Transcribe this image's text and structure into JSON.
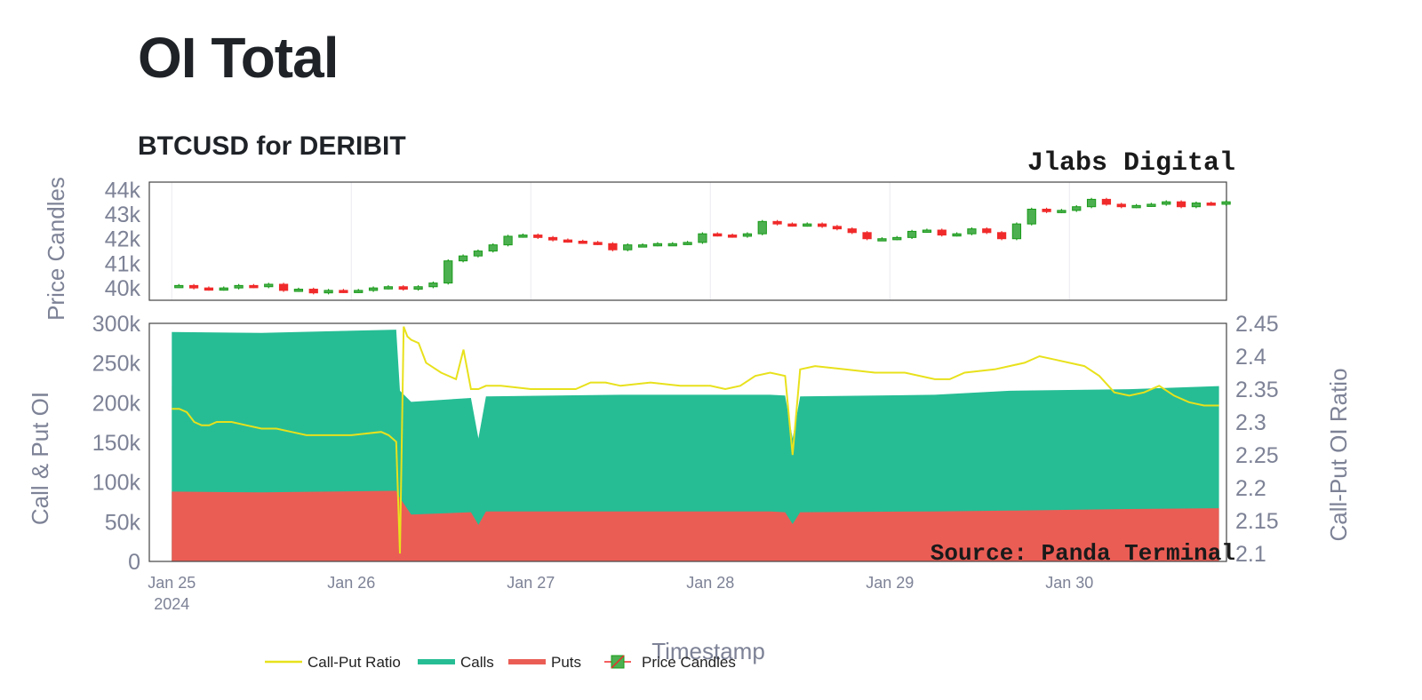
{
  "header": {
    "title": "OI Total",
    "subtitle": "BTCUSD for DERIBIT"
  },
  "watermarks": {
    "top": "Jlabs Digital",
    "bottom": "Source: Panda Terminal"
  },
  "colors": {
    "calls": "#26bd94",
    "puts": "#ea5d55",
    "ratio": "#e8e11c",
    "up": "#1a9c1a",
    "down": "#f02a2a",
    "axis_text": "#7d8296"
  },
  "chart_data": [
    {
      "type": "candlestick",
      "title": "",
      "ylabel": "Price Candles",
      "ylim": [
        39500,
        44300
      ],
      "yticks": [
        40000,
        41000,
        42000,
        43000,
        44000
      ],
      "ytick_labels": [
        "40k",
        "41k",
        "42k",
        "43k",
        "44k"
      ],
      "series": [
        {
          "name": "Price Candles",
          "x": [
            "2024-01-25T00:00",
            "2024-01-25T02:00",
            "2024-01-25T04:00",
            "2024-01-25T06:00",
            "2024-01-25T08:00",
            "2024-01-25T10:00",
            "2024-01-25T12:00",
            "2024-01-25T14:00",
            "2024-01-25T16:00",
            "2024-01-25T18:00",
            "2024-01-25T20:00",
            "2024-01-25T22:00",
            "2024-01-26T00:00",
            "2024-01-26T02:00",
            "2024-01-26T04:00",
            "2024-01-26T06:00",
            "2024-01-26T08:00",
            "2024-01-26T10:00",
            "2024-01-26T12:00",
            "2024-01-26T14:00",
            "2024-01-26T16:00",
            "2024-01-26T18:00",
            "2024-01-26T20:00",
            "2024-01-26T22:00",
            "2024-01-27T00:00",
            "2024-01-27T02:00",
            "2024-01-27T04:00",
            "2024-01-27T06:00",
            "2024-01-27T08:00",
            "2024-01-27T10:00",
            "2024-01-27T12:00",
            "2024-01-27T14:00",
            "2024-01-27T16:00",
            "2024-01-27T18:00",
            "2024-01-27T20:00",
            "2024-01-27T22:00",
            "2024-01-28T00:00",
            "2024-01-28T02:00",
            "2024-01-28T04:00",
            "2024-01-28T06:00",
            "2024-01-28T08:00",
            "2024-01-28T10:00",
            "2024-01-28T12:00",
            "2024-01-28T14:00",
            "2024-01-28T16:00",
            "2024-01-28T18:00",
            "2024-01-28T20:00",
            "2024-01-28T22:00",
            "2024-01-29T00:00",
            "2024-01-29T02:00",
            "2024-01-29T04:00",
            "2024-01-29T06:00",
            "2024-01-29T08:00",
            "2024-01-29T10:00",
            "2024-01-29T12:00",
            "2024-01-29T14:00",
            "2024-01-29T16:00",
            "2024-01-29T18:00",
            "2024-01-29T20:00",
            "2024-01-29T22:00",
            "2024-01-30T00:00",
            "2024-01-30T02:00",
            "2024-01-30T04:00",
            "2024-01-30T06:00",
            "2024-01-30T08:00",
            "2024-01-30T10:00",
            "2024-01-30T12:00",
            "2024-01-30T14:00",
            "2024-01-30T16:00",
            "2024-01-30T18:00",
            "2024-01-30T20:00"
          ],
          "close": [
            40100,
            40000,
            39950,
            40000,
            40100,
            40050,
            40150,
            39900,
            39950,
            39800,
            39900,
            39850,
            39900,
            40000,
            40050,
            39950,
            40050,
            40200,
            41100,
            41300,
            41500,
            41750,
            42100,
            42150,
            42050,
            41950,
            41900,
            41850,
            41800,
            41550,
            41750,
            41750,
            41800,
            41800,
            41850,
            42200,
            42150,
            42100,
            42200,
            42700,
            42600,
            42550,
            42600,
            42500,
            42400,
            42250,
            42000,
            42000,
            42050,
            42300,
            42350,
            42150,
            42200,
            42400,
            42250,
            42000,
            42600,
            43200,
            43100,
            43150,
            43300,
            43600,
            43400,
            43300,
            43350,
            43400,
            43500,
            43300,
            43450,
            43400,
            43500
          ]
        }
      ]
    },
    {
      "type": "area",
      "title": "",
      "xlabel": "Timestamp",
      "ylabel": "Call & Put OI",
      "y2label": "Call-Put OI Ratio",
      "ylim": [
        0,
        300000
      ],
      "yticks": [
        0,
        50000,
        100000,
        150000,
        200000,
        250000,
        300000
      ],
      "ytick_labels": [
        "0",
        "50k",
        "100k",
        "150k",
        "200k",
        "250k",
        "300k"
      ],
      "y2lim": [
        2.088,
        2.45
      ],
      "y2ticks": [
        2.1,
        2.15,
        2.2,
        2.25,
        2.3,
        2.35,
        2.4,
        2.45
      ],
      "y2tick_labels": [
        "2.1",
        "2.15",
        "2.2",
        "2.25",
        "2.3",
        "2.35",
        "2.4",
        "2.45"
      ],
      "xticks": [
        "Jan 25",
        "Jan 26",
        "Jan 27",
        "Jan 28",
        "Jan 29",
        "Jan 30"
      ],
      "xtick_year": "2024",
      "x_days": [
        "2024-01-25",
        "2024-01-26",
        "2024-01-27",
        "2024-01-28",
        "2024-01-29",
        "2024-01-30",
        "2024-01-30T20:00"
      ],
      "series": [
        {
          "name": "Calls",
          "stack": "total",
          "x": [
            "2024-01-25T00:00",
            "2024-01-25T12:00",
            "2024-01-26T06:00",
            "2024-01-26T06:30",
            "2024-01-26T08:00",
            "2024-01-26T16:00",
            "2024-01-26T17:00",
            "2024-01-26T18:00",
            "2024-01-27T12:00",
            "2024-01-28T08:00",
            "2024-01-28T10:00",
            "2024-01-28T11:00",
            "2024-01-28T12:00",
            "2024-01-29T06:00",
            "2024-01-29T16:00",
            "2024-01-30T08:00",
            "2024-01-30T20:00"
          ],
          "values": [
            289000,
            288000,
            292000,
            215000,
            201000,
            206000,
            155000,
            208000,
            210000,
            210000,
            209000,
            155000,
            208000,
            210000,
            215000,
            217000,
            221000
          ]
        },
        {
          "name": "Puts",
          "x": [
            "2024-01-25T00:00",
            "2024-01-25T12:00",
            "2024-01-26T06:00",
            "2024-01-26T06:30",
            "2024-01-26T08:00",
            "2024-01-26T16:00",
            "2024-01-26T17:00",
            "2024-01-26T18:00",
            "2024-01-27T12:00",
            "2024-01-28T08:00",
            "2024-01-28T10:00",
            "2024-01-28T11:00",
            "2024-01-28T12:00",
            "2024-01-29T06:00",
            "2024-01-29T16:00",
            "2024-01-30T08:00",
            "2024-01-30T20:00"
          ],
          "values": [
            88000,
            87000,
            89000,
            80000,
            59000,
            62000,
            46000,
            63000,
            63000,
            63000,
            62000,
            47000,
            62000,
            63000,
            64000,
            66000,
            67000
          ]
        },
        {
          "name": "Call-Put Ratio",
          "axis": "y2",
          "x": [
            "2024-01-25T00:00",
            "2024-01-25T01:00",
            "2024-01-25T02:00",
            "2024-01-25T03:00",
            "2024-01-25T04:00",
            "2024-01-25T05:00",
            "2024-01-25T06:00",
            "2024-01-25T08:00",
            "2024-01-25T10:00",
            "2024-01-25T12:00",
            "2024-01-25T14:00",
            "2024-01-25T16:00",
            "2024-01-25T18:00",
            "2024-01-25T20:00",
            "2024-01-26T00:00",
            "2024-01-26T04:00",
            "2024-01-26T05:00",
            "2024-01-26T06:00",
            "2024-01-26T06:30",
            "2024-01-26T07:00",
            "2024-01-26T07:30",
            "2024-01-26T08:00",
            "2024-01-26T09:00",
            "2024-01-26T10:00",
            "2024-01-26T12:00",
            "2024-01-26T14:00",
            "2024-01-26T15:00",
            "2024-01-26T16:00",
            "2024-01-26T17:00",
            "2024-01-26T18:00",
            "2024-01-26T20:00",
            "2024-01-27T00:00",
            "2024-01-27T06:00",
            "2024-01-27T08:00",
            "2024-01-27T10:00",
            "2024-01-27T12:00",
            "2024-01-27T16:00",
            "2024-01-27T20:00",
            "2024-01-28T00:00",
            "2024-01-28T02:00",
            "2024-01-28T04:00",
            "2024-01-28T06:00",
            "2024-01-28T08:00",
            "2024-01-28T10:00",
            "2024-01-28T11:00",
            "2024-01-28T12:00",
            "2024-01-28T14:00",
            "2024-01-28T18:00",
            "2024-01-28T22:00",
            "2024-01-29T02:00",
            "2024-01-29T06:00",
            "2024-01-29T08:00",
            "2024-01-29T10:00",
            "2024-01-29T14:00",
            "2024-01-29T16:00",
            "2024-01-29T18:00",
            "2024-01-29T20:00",
            "2024-01-29T22:00",
            "2024-01-30T02:00",
            "2024-01-30T04:00",
            "2024-01-30T06:00",
            "2024-01-30T08:00",
            "2024-01-30T10:00",
            "2024-01-30T12:00",
            "2024-01-30T14:00",
            "2024-01-30T16:00",
            "2024-01-30T18:00",
            "2024-01-30T20:00"
          ],
          "values": [
            2.32,
            2.32,
            2.315,
            2.3,
            2.295,
            2.295,
            2.3,
            2.3,
            2.295,
            2.29,
            2.29,
            2.285,
            2.28,
            2.28,
            2.28,
            2.285,
            2.28,
            2.27,
            2.1,
            2.445,
            2.43,
            2.425,
            2.42,
            2.39,
            2.375,
            2.365,
            2.41,
            2.35,
            2.35,
            2.355,
            2.355,
            2.35,
            2.35,
            2.36,
            2.36,
            2.355,
            2.36,
            2.355,
            2.355,
            2.35,
            2.355,
            2.37,
            2.375,
            2.37,
            2.25,
            2.38,
            2.385,
            2.38,
            2.375,
            2.375,
            2.365,
            2.365,
            2.375,
            2.38,
            2.385,
            2.39,
            2.4,
            2.395,
            2.385,
            2.37,
            2.345,
            2.34,
            2.345,
            2.355,
            2.34,
            2.33,
            2.325,
            2.325
          ]
        }
      ],
      "legend": {
        "placement": "bottom-center",
        "entries": [
          "Call-Put Ratio",
          "Calls",
          "Puts",
          "Price Candles"
        ]
      }
    }
  ]
}
